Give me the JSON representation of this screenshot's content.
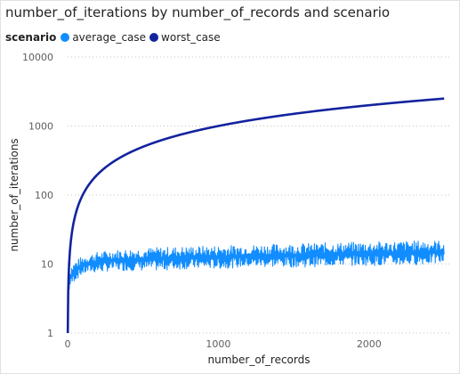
{
  "chart_data": {
    "type": "line",
    "title": "number_of_iterations by number_of_records and scenario",
    "legend_title": "scenario",
    "legend_position": "top-left",
    "xlabel": "number_of_records",
    "ylabel": "number_of_iterations",
    "xlim": [
      0,
      2550
    ],
    "ylim": [
      1,
      10000
    ],
    "y_scale": "log",
    "x_ticks": [
      0,
      1000,
      2000
    ],
    "x_tick_labels": [
      "0",
      "1000",
      "2000"
    ],
    "y_ticks": [
      1,
      10,
      100,
      1000,
      10000
    ],
    "y_tick_labels": [
      "1",
      "10",
      "100",
      "1000",
      "10000"
    ],
    "grid": "horizontal dotted",
    "series": [
      {
        "name": "average_case",
        "color": "#118DFF",
        "x": [
          1,
          2,
          5,
          10,
          20,
          40,
          60,
          100,
          150,
          200,
          300,
          400,
          500,
          600,
          800,
          1000,
          1200,
          1400,
          1600,
          1800,
          2000,
          2200,
          2400,
          2500
        ],
        "low": [
          1,
          2,
          3,
          4,
          4.5,
          5.5,
          6,
          7,
          7.5,
          7.5,
          8,
          8,
          8,
          8,
          8.5,
          8.5,
          9,
          9,
          9,
          9.5,
          9.5,
          9.5,
          10,
          10
        ],
        "high": [
          2,
          4,
          6,
          8,
          9.5,
          10.5,
          11.5,
          13,
          14,
          15,
          16,
          16.5,
          17,
          17.5,
          18,
          18.5,
          19,
          19.5,
          20,
          20.5,
          21,
          21.5,
          22,
          22
        ]
      },
      {
        "name": "worst_case",
        "color": "#12239E",
        "x": [
          1,
          2,
          5,
          10,
          20,
          40,
          60,
          100,
          150,
          200,
          300,
          500,
          700,
          1000,
          1300,
          1600,
          2000,
          2300,
          2500
        ],
        "y": [
          1,
          2,
          5,
          10,
          20,
          40,
          60,
          100,
          150,
          200,
          300,
          500,
          700,
          1000,
          1300,
          1600,
          2000,
          2300,
          2500
        ]
      }
    ]
  }
}
